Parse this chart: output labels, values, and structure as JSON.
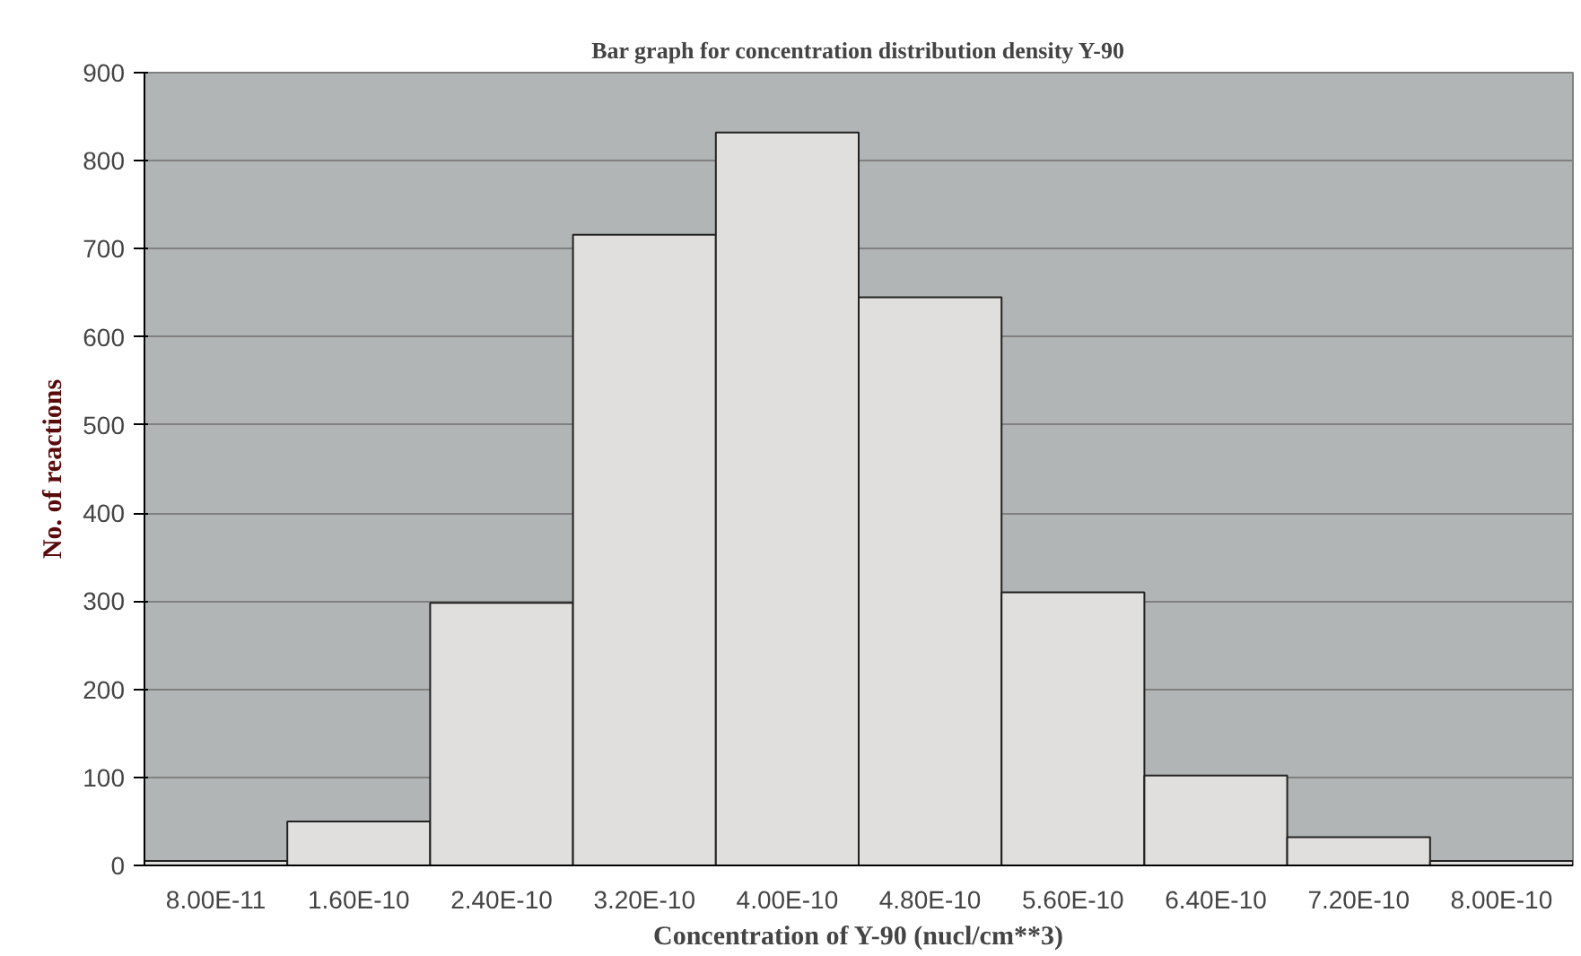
{
  "chart_data": {
    "type": "bar",
    "title": "Bar graph for concentration distribution density Y-90",
    "xlabel": "Concentration of Y-90 (nucl/cm**3)",
    "ylabel": "No. of reactions",
    "categories": [
      "8.00E-11",
      "1.60E-10",
      "2.40E-10",
      "3.20E-10",
      "4.00E-10",
      "4.80E-10",
      "5.60E-10",
      "6.40E-10",
      "7.20E-10",
      "8.00E-10"
    ],
    "values": [
      5,
      50,
      298,
      716,
      832,
      645,
      310,
      102,
      32,
      5
    ],
    "color": "#e0dfdd",
    "ylim": [
      0,
      900
    ],
    "yticks": [
      0,
      100,
      200,
      300,
      400,
      500,
      600,
      700,
      800,
      900
    ],
    "grid": "y"
  }
}
